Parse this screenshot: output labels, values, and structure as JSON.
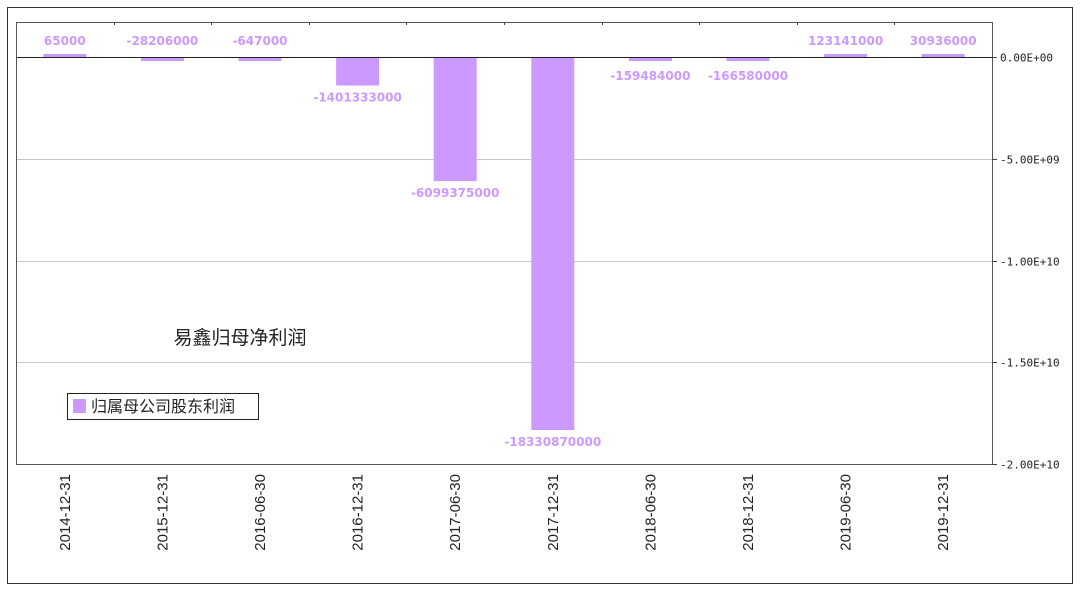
{
  "chart_data": {
    "type": "bar",
    "title": "易鑫归母净利润",
    "categories": [
      "2014-12-31",
      "2015-12-31",
      "2016-06-30",
      "2016-12-31",
      "2017-06-30",
      "2017-12-31",
      "2018-06-30",
      "2018-12-31",
      "2019-06-30",
      "2019-12-31"
    ],
    "series": [
      {
        "name": "归属母公司股东利润",
        "color": "#cc99ff",
        "values": [
          65000,
          -28206000,
          -647000,
          -1401333000,
          -6099375000,
          -18330870000,
          -159484000,
          -166580000,
          123141000,
          30936000
        ],
        "labels": [
          "65000",
          "-28206000",
          "-647000",
          "-1401333000",
          "-6099375000",
          "-18330870000",
          "-159484000",
          "-166580000",
          "123141000",
          "30936000"
        ]
      }
    ],
    "y_axis": {
      "position": "right",
      "ylim": [
        -20000000000,
        0
      ],
      "ticks": [
        0,
        -5000000000,
        -10000000000,
        -15000000000,
        -20000000000
      ],
      "tick_labels": [
        "0.00E+00",
        "-5.00E+09",
        "-1.00E+10",
        "-1.50E+10",
        "-2.00E+10"
      ]
    },
    "grid": true,
    "legend_position": "left",
    "label_color": "#cc99ff"
  }
}
